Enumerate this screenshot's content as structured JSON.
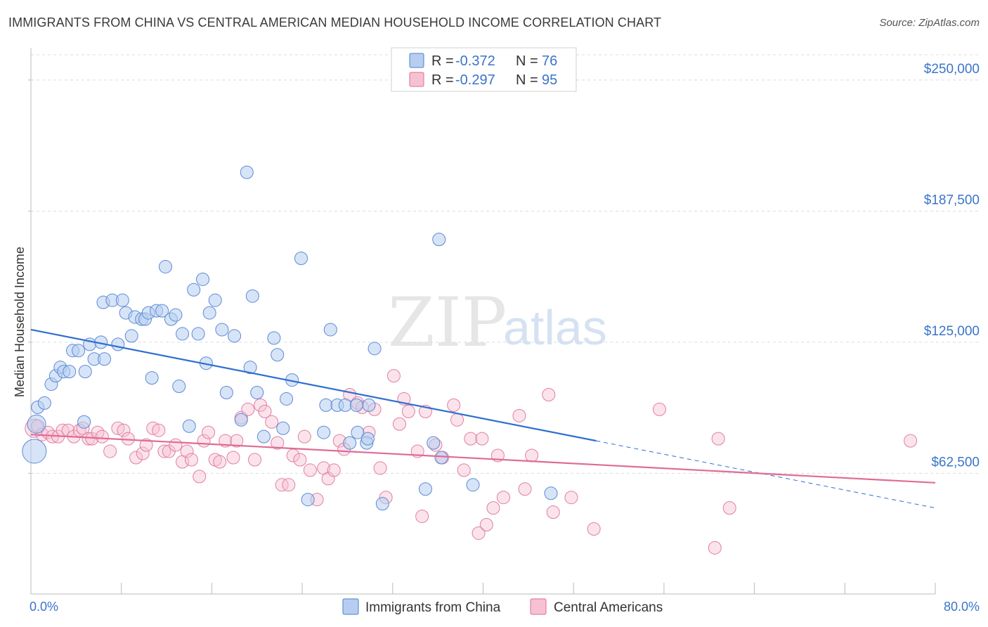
{
  "title": "IMMIGRANTS FROM CHINA VS CENTRAL AMERICAN MEDIAN HOUSEHOLD INCOME CORRELATION CHART",
  "source": "Source: ZipAtlas.com",
  "watermark": {
    "zip": "ZIP",
    "atlas": "atlas"
  },
  "colors": {
    "blue": "#4a7fd0",
    "blue_fill": "#b7cdf0",
    "pink": "#e06b96",
    "pink_fill": "#f6c2d3",
    "tick_text": "#3a74c9"
  },
  "legend": {
    "rows": [
      {
        "r_label": "R =",
        "r_value": "-0.372",
        "n_label": "N =",
        "n_value": "76"
      },
      {
        "r_label": "R =",
        "r_value": "-0.297",
        "n_label": "N =",
        "n_value": "95"
      }
    ]
  },
  "chart_data": {
    "type": "scatter",
    "title": "IMMIGRANTS FROM CHINA VS CENTRAL AMERICAN MEDIAN HOUSEHOLD INCOME CORRELATION CHART",
    "xlabel": "",
    "ylabel": "Median Household Income",
    "xlim": [
      0,
      80
    ],
    "ylim": [
      5000,
      262000
    ],
    "x_tick_labels": [
      "0.0%",
      "80.0%"
    ],
    "y_ticks": [
      62500,
      125000,
      187500,
      250000
    ],
    "y_tick_labels": [
      "$62,500",
      "$125,000",
      "$187,500",
      "$250,000"
    ],
    "grid": "horizontal dashed",
    "legend_position": "top-center",
    "series": [
      {
        "name": "Immigrants from China",
        "color": "#4a7fd0",
        "r": -0.372,
        "n": 76,
        "trend": {
          "x0": 0,
          "y0": 131000,
          "x1": 50,
          "y1": 78000,
          "dashed_to_x": 80,
          "dashed_to_y": 46000
        },
        "points": [
          [
            0.3,
            73000,
            3
          ],
          [
            0.5,
            86000,
            2
          ],
          [
            0.6,
            94000,
            1
          ],
          [
            1.2,
            96000,
            1
          ],
          [
            1.8,
            105000,
            1
          ],
          [
            2.2,
            109000,
            1
          ],
          [
            2.6,
            113000,
            1
          ],
          [
            2.9,
            111000,
            1
          ],
          [
            3.4,
            111000,
            1
          ],
          [
            3.7,
            121000,
            1
          ],
          [
            4.2,
            121000,
            1
          ],
          [
            4.7,
            87000,
            1
          ],
          [
            4.8,
            111000,
            1
          ],
          [
            5.2,
            124000,
            1
          ],
          [
            5.6,
            117000,
            1
          ],
          [
            6.2,
            125000,
            1
          ],
          [
            6.5,
            117000,
            1
          ],
          [
            6.4,
            144000,
            1
          ],
          [
            7.2,
            145000,
            1
          ],
          [
            7.7,
            124000,
            1
          ],
          [
            8.1,
            145000,
            1
          ],
          [
            8.4,
            139000,
            1
          ],
          [
            8.9,
            128000,
            1
          ],
          [
            9.2,
            137000,
            1
          ],
          [
            9.8,
            136000,
            1
          ],
          [
            10.1,
            136000,
            1
          ],
          [
            10.4,
            139000,
            1
          ],
          [
            10.7,
            108000,
            1
          ],
          [
            11.1,
            140000,
            1
          ],
          [
            11.6,
            140000,
            1
          ],
          [
            11.9,
            161000,
            1
          ],
          [
            12.4,
            136000,
            1
          ],
          [
            12.8,
            138000,
            1
          ],
          [
            13.1,
            104000,
            1
          ],
          [
            13.4,
            129000,
            1
          ],
          [
            14.0,
            85000,
            1
          ],
          [
            14.4,
            150000,
            1
          ],
          [
            14.8,
            129000,
            1
          ],
          [
            15.2,
            155000,
            1
          ],
          [
            15.5,
            115000,
            1
          ],
          [
            15.8,
            139000,
            1
          ],
          [
            16.3,
            145000,
            1
          ],
          [
            16.9,
            131000,
            1
          ],
          [
            17.3,
            101000,
            1
          ],
          [
            18.0,
            128000,
            1
          ],
          [
            18.6,
            88000,
            1
          ],
          [
            19.1,
            206000,
            1
          ],
          [
            19.4,
            113000,
            1
          ],
          [
            19.6,
            147000,
            1
          ],
          [
            20.0,
            101000,
            1
          ],
          [
            20.6,
            80000,
            1
          ],
          [
            21.5,
            127000,
            1
          ],
          [
            21.8,
            119000,
            1
          ],
          [
            22.3,
            84000,
            1
          ],
          [
            22.6,
            98000,
            1
          ],
          [
            23.1,
            107000,
            1
          ],
          [
            23.9,
            165000,
            1
          ],
          [
            24.5,
            50000,
            1
          ],
          [
            25.9,
            82000,
            1
          ],
          [
            26.1,
            95000,
            1
          ],
          [
            26.5,
            131000,
            1
          ],
          [
            27.1,
            95000,
            1
          ],
          [
            27.8,
            95000,
            1
          ],
          [
            28.2,
            77000,
            1
          ],
          [
            28.8,
            95000,
            1
          ],
          [
            28.9,
            82000,
            1
          ],
          [
            29.7,
            77000,
            1
          ],
          [
            29.8,
            79000,
            1
          ],
          [
            29.9,
            95000,
            1
          ],
          [
            30.4,
            122000,
            1
          ],
          [
            31.1,
            48000,
            1
          ],
          [
            34.9,
            55000,
            1
          ],
          [
            35.6,
            77000,
            1
          ],
          [
            36.1,
            174000,
            1
          ],
          [
            36.3,
            70000,
            1
          ],
          [
            39.1,
            57000,
            1
          ],
          [
            46.0,
            53000,
            1
          ]
        ]
      },
      {
        "name": "Central Americans",
        "color": "#e06b96",
        "r": -0.297,
        "n": 95,
        "trend": {
          "x0": 0,
          "y0": 81000,
          "x1": 80,
          "y1": 58000
        },
        "points": [
          [
            0.3,
            84000,
            2
          ],
          [
            0.6,
            85000,
            1
          ],
          [
            1.0,
            81000,
            1
          ],
          [
            1.5,
            82000,
            1
          ],
          [
            1.9,
            80000,
            1
          ],
          [
            2.4,
            80000,
            1
          ],
          [
            2.8,
            83000,
            1
          ],
          [
            3.3,
            83000,
            1
          ],
          [
            3.8,
            80000,
            1
          ],
          [
            4.3,
            83000,
            1
          ],
          [
            4.6,
            84000,
            1
          ],
          [
            5.1,
            79000,
            1
          ],
          [
            5.4,
            79000,
            1
          ],
          [
            5.9,
            82000,
            1
          ],
          [
            6.3,
            80000,
            1
          ],
          [
            7.0,
            73000,
            1
          ],
          [
            7.7,
            84000,
            1
          ],
          [
            8.2,
            83000,
            1
          ],
          [
            8.6,
            79000,
            1
          ],
          [
            9.3,
            70000,
            1
          ],
          [
            9.9,
            72000,
            1
          ],
          [
            10.2,
            76000,
            1
          ],
          [
            10.8,
            84000,
            1
          ],
          [
            11.3,
            83000,
            1
          ],
          [
            11.8,
            73000,
            1
          ],
          [
            12.2,
            73000,
            1
          ],
          [
            12.8,
            76000,
            1
          ],
          [
            13.4,
            68000,
            1
          ],
          [
            13.8,
            73000,
            1
          ],
          [
            14.2,
            69000,
            1
          ],
          [
            14.9,
            61000,
            1
          ],
          [
            15.3,
            78000,
            1
          ],
          [
            15.7,
            82000,
            1
          ],
          [
            16.3,
            69000,
            1
          ],
          [
            16.7,
            68000,
            1
          ],
          [
            17.2,
            78000,
            1
          ],
          [
            17.9,
            70000,
            1
          ],
          [
            18.2,
            78000,
            1
          ],
          [
            18.6,
            89000,
            1
          ],
          [
            19.2,
            93000,
            1
          ],
          [
            19.8,
            69000,
            1
          ],
          [
            20.3,
            95000,
            1
          ],
          [
            20.7,
            92000,
            1
          ],
          [
            21.3,
            87000,
            1
          ],
          [
            21.8,
            77000,
            1
          ],
          [
            22.2,
            57000,
            1
          ],
          [
            22.8,
            57000,
            1
          ],
          [
            23.2,
            71000,
            1
          ],
          [
            23.8,
            69000,
            1
          ],
          [
            24.2,
            80000,
            1
          ],
          [
            24.7,
            64000,
            1
          ],
          [
            25.3,
            50000,
            1
          ],
          [
            25.9,
            65000,
            1
          ],
          [
            26.3,
            60000,
            1
          ],
          [
            26.8,
            64000,
            1
          ],
          [
            27.3,
            78000,
            1
          ],
          [
            27.7,
            74000,
            1
          ],
          [
            28.2,
            100000,
            1
          ],
          [
            28.9,
            96000,
            1
          ],
          [
            29.3,
            94000,
            1
          ],
          [
            29.9,
            82000,
            1
          ],
          [
            30.4,
            93000,
            1
          ],
          [
            30.9,
            65000,
            1
          ],
          [
            31.4,
            51000,
            1
          ],
          [
            32.1,
            109000,
            1
          ],
          [
            32.6,
            86000,
            1
          ],
          [
            33.0,
            98000,
            1
          ],
          [
            33.4,
            92000,
            1
          ],
          [
            34.2,
            73000,
            1
          ],
          [
            34.6,
            42000,
            1
          ],
          [
            34.9,
            92000,
            1
          ],
          [
            35.8,
            76000,
            1
          ],
          [
            36.4,
            70000,
            1
          ],
          [
            37.4,
            95000,
            1
          ],
          [
            37.7,
            88000,
            1
          ],
          [
            38.3,
            64000,
            1
          ],
          [
            38.9,
            79000,
            1
          ],
          [
            39.6,
            34000,
            1
          ],
          [
            39.9,
            79000,
            1
          ],
          [
            40.3,
            38000,
            1
          ],
          [
            40.9,
            46000,
            1
          ],
          [
            41.3,
            71000,
            1
          ],
          [
            41.8,
            51000,
            1
          ],
          [
            43.2,
            90000,
            1
          ],
          [
            43.7,
            55000,
            1
          ],
          [
            44.3,
            71000,
            1
          ],
          [
            45.8,
            100000,
            1
          ],
          [
            46.2,
            44000,
            1
          ],
          [
            47.8,
            51000,
            1
          ],
          [
            49.8,
            36000,
            1
          ],
          [
            55.6,
            93000,
            1
          ],
          [
            60.5,
            27000,
            1
          ],
          [
            60.8,
            79000,
            1
          ],
          [
            61.8,
            46000,
            1
          ],
          [
            77.8,
            78000,
            1
          ]
        ]
      }
    ]
  },
  "bottom_legend": {
    "series1": "Immigrants from China",
    "series2": "Central Americans"
  }
}
